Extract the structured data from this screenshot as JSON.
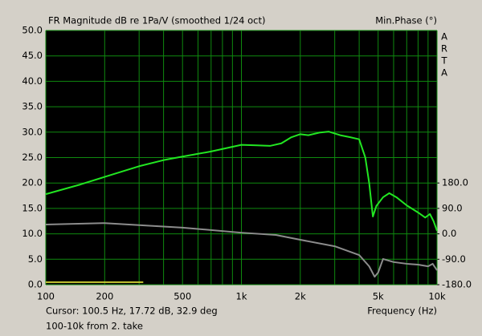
{
  "chart_data": {
    "type": "line",
    "title": "FR Magnitude dB re 1Pa/V (smoothed 1/24 oct)",
    "y2_label": "Min.Phase (°)",
    "brand": [
      "A",
      "R",
      "T",
      "A"
    ],
    "x_label": "Frequency (Hz)",
    "cursor": "Cursor: 100.5 Hz, 17.72 dB, 32.9 deg",
    "note": "100-10k  from 2. take",
    "xlog": true,
    "xlim": [
      100,
      10000
    ],
    "xticks": [
      100,
      200,
      500,
      {
        "value": 1000,
        "label": "1k"
      },
      {
        "value": 2000,
        "label": "2k"
      },
      {
        "value": 5000,
        "label": "5k"
      },
      {
        "value": 10000,
        "label": "10k"
      }
    ],
    "xminor": [
      300,
      400,
      600,
      700,
      800,
      900,
      3000,
      4000,
      6000,
      7000,
      8000,
      9000
    ],
    "ylim": [
      0,
      50
    ],
    "yticks": [
      {
        "value": 0,
        "label": "0.0"
      },
      {
        "value": 5,
        "label": "5.0"
      },
      {
        "value": 10,
        "label": "10.0"
      },
      {
        "value": 15,
        "label": "15.0"
      },
      {
        "value": 20,
        "label": "20.0"
      },
      {
        "value": 25,
        "label": "25.0"
      },
      {
        "value": 30,
        "label": "30.0"
      },
      {
        "value": 35,
        "label": "35.0"
      },
      {
        "value": 40,
        "label": "40.0"
      },
      {
        "value": 45,
        "label": "45.0"
      },
      {
        "value": 50,
        "label": "50.0"
      }
    ],
    "y2lim": [
      -180,
      720
    ],
    "y2ticks": [
      {
        "value": -180,
        "label": "-180.0"
      },
      {
        "value": -90,
        "label": "-90.0"
      },
      {
        "value": 0,
        "label": "0.0"
      },
      {
        "value": 90,
        "label": "90.0"
      },
      {
        "value": 180,
        "label": "180.0"
      }
    ],
    "grid": true,
    "series": [
      {
        "color": "#22e622",
        "x": [
          100,
          150,
          200,
          300,
          400,
          500,
          700,
          1000,
          1200,
          1400,
          1600,
          1800,
          2000,
          2200,
          2500,
          2800,
          3200,
          3600,
          4000,
          4300,
          4500,
          4700,
          4900,
          5300,
          5700,
          6200,
          7000,
          8000,
          8700,
          9200,
          9600,
          10000
        ],
        "values": [
          17.8,
          19.7,
          21.2,
          23.3,
          24.5,
          25.2,
          26.2,
          27.5,
          27.4,
          27.3,
          27.8,
          29.0,
          29.6,
          29.4,
          29.9,
          30.1,
          29.4,
          29.0,
          28.6,
          25.0,
          20.0,
          13.4,
          15.5,
          17.2,
          18.0,
          17.2,
          15.6,
          14.2,
          13.2,
          13.9,
          12.5,
          10.6
        ]
      },
      {
        "color": "#8c8c8c",
        "axis": "y2",
        "x": [
          100,
          200,
          500,
          1000,
          1500,
          2000,
          3000,
          4000,
          4500,
          4800,
          5000,
          5300,
          6000,
          7000,
          8000,
          9000,
          9500,
          10000
        ],
        "values": [
          33,
          38,
          22,
          4,
          -4,
          -21,
          -44,
          -75,
          -115,
          -152,
          -137,
          -89,
          -100,
          -106,
          -109,
          -115,
          -106,
          -129
        ]
      },
      {
        "color": "#c8c832",
        "x": [
          100,
          315
        ],
        "values": [
          0.5,
          0.5
        ]
      }
    ]
  }
}
